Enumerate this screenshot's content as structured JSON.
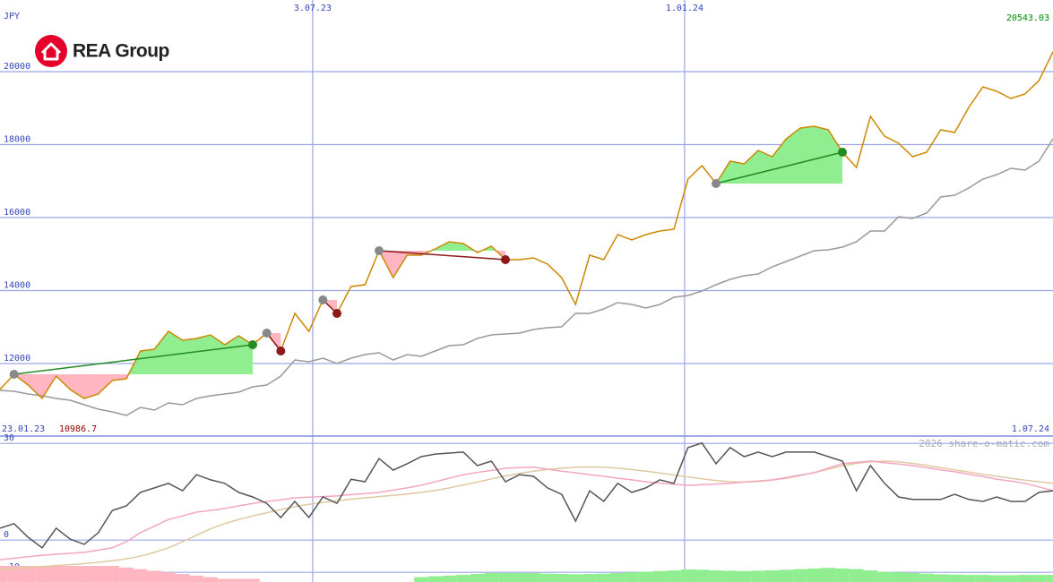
{
  "chart_data": [
    {
      "type": "line",
      "title": "REA Group",
      "unit": "JPY",
      "xlim": [
        0,
        75
      ],
      "xticks": [
        {
          "value": 0,
          "label": "23.01.23"
        },
        {
          "value": 22.27,
          "label": "3.07.23"
        },
        {
          "value": 48.76,
          "label": "1.01.24"
        },
        {
          "value": 75,
          "label": "1.07.24"
        }
      ],
      "ylim": [
        10012,
        21963
      ],
      "yticks": [
        12000,
        14000,
        16000,
        18000,
        20000
      ],
      "grid": true,
      "low": 10986.7,
      "low_color": "#8b0000",
      "last_color": "#008800",
      "series": [
        {
          "color": "#cc8800",
          "values": [
            11288,
            11705,
            11411,
            11043,
            11656,
            11288,
            11043,
            11166,
            11534,
            11583,
            12343,
            12392,
            12883,
            12638,
            12687,
            12785,
            12515,
            12760,
            12515,
            12834,
            12343,
            13374,
            12883,
            13742,
            13374,
            14110,
            14159,
            15092,
            14356,
            14969,
            14969,
            15141,
            15337,
            15288,
            15043,
            15214,
            14847,
            14847,
            14896,
            14724,
            14356,
            13620,
            14969,
            14847,
            15534,
            15386,
            15534,
            15632,
            15681,
            17055,
            17423,
            16932,
            17546,
            17472,
            17840,
            17669,
            18159,
            18454,
            18503,
            18405,
            17791,
            17374,
            18773,
            18233,
            18037,
            17669,
            17791,
            18405,
            18331,
            19018,
            19583,
            19460,
            19264,
            19386,
            19755,
            20543.03
          ]
        },
        {
          "color": "#999999",
          "values": [
            11264,
            11240,
            11166,
            11117,
            11043,
            10994,
            10871,
            10748,
            10675,
            10577,
            10798,
            10724,
            10920,
            10871,
            11043,
            11117,
            11166,
            11215,
            11362,
            11411,
            11656,
            12098,
            12049,
            12147,
            12000,
            12147,
            12245,
            12294,
            12098,
            12245,
            12196,
            12343,
            12491,
            12515,
            12687,
            12785,
            12810,
            12834,
            12932,
            12981,
            13006,
            13374,
            13374,
            13497,
            13669,
            13620,
            13521,
            13620,
            13816,
            13865,
            13988,
            14159,
            14307,
            14405,
            14454,
            14650,
            14797,
            14945,
            15092,
            15116,
            15190,
            15337,
            15632,
            15632,
            16025,
            15976,
            16123,
            16565,
            16614,
            16810,
            17055,
            17178,
            17350,
            17301,
            17546,
            18159
          ]
        }
      ],
      "trades": [
        {
          "start": 1,
          "end": 18,
          "color": "#228b22"
        },
        {
          "start": 19,
          "end": 20,
          "color": "#8b1a1a"
        },
        {
          "start": 23,
          "end": 24,
          "color": "#8b1a1a"
        },
        {
          "start": 27,
          "end": 36,
          "color": "#8b1a1a"
        },
        {
          "start": 51,
          "end": 60,
          "color": "#228b22"
        }
      ]
    },
    {
      "type": "line",
      "credit": "2026 share-o-matic.com",
      "xlim": [
        0,
        75
      ],
      "ylim": [
        -13,
        32
      ],
      "yticks": [
        30,
        0,
        -10
      ],
      "grid": true,
      "series": [
        {
          "color": "#555555",
          "values": [
            3.7,
            5.1,
            0.9,
            -2.4,
            3.7,
            0.3,
            -1.3,
            2.3,
            9.2,
            10.6,
            14.8,
            16.2,
            17.6,
            15.3,
            20.3,
            18.7,
            17.6,
            14.8,
            13.4,
            11.4,
            7,
            12,
            7,
            13.4,
            11.4,
            18.9,
            18.1,
            25.3,
            21.7,
            23.7,
            25.9,
            26.7,
            27,
            27.3,
            23.1,
            24.5,
            18.1,
            20.3,
            19.8,
            16.2,
            14.2,
            5.9,
            15.3,
            12,
            17.6,
            14.8,
            16.2,
            18.7,
            17.6,
            28.7,
            30.1,
            23.7,
            28.7,
            25.9,
            27.3,
            25.9,
            27.3,
            27.3,
            27.3,
            25.9,
            24.5,
            15.3,
            23.1,
            17.6,
            13.4,
            12.6,
            12.6,
            12.6,
            14.2,
            12.6,
            12,
            13.4,
            12,
            12,
            14.8,
            15.3
          ]
        },
        {
          "color": "#f4a6c0",
          "values": [
            -6.1,
            -5.6,
            -5.2,
            -4.7,
            -4.4,
            -4.1,
            -3.8,
            -3.1,
            -2.4,
            -0.5,
            2.3,
            4.3,
            6.4,
            7.5,
            8.7,
            9.2,
            9.8,
            10.6,
            11.4,
            12,
            12.5,
            13.1,
            13.3,
            13.5,
            13.7,
            14.1,
            14.4,
            14.8,
            15.5,
            16.2,
            17,
            18.1,
            19.2,
            20.3,
            21,
            21.6,
            22.3,
            22.5,
            22.6,
            22,
            21.4,
            20.9,
            20.3,
            19.8,
            19.2,
            18.7,
            18.1,
            17.7,
            17.3,
            17,
            17.2,
            17.4,
            17.6,
            18,
            18.3,
            18.7,
            19.4,
            20.2,
            20.9,
            22.3,
            23.7,
            24.1,
            24.5,
            24,
            23.6,
            23.1,
            22.5,
            21.8,
            21.2,
            20.4,
            19.7,
            18.9,
            18.3,
            17.6,
            16.5,
            15.3
          ]
        },
        {
          "color": "#e0c8a0",
          "values": [
            -9.1,
            -8.8,
            -8.5,
            -8.2,
            -7.9,
            -7.6,
            -7.3,
            -6.9,
            -6.4,
            -5.8,
            -5,
            -3.8,
            -2.4,
            -0.5,
            1.5,
            3.5,
            5.1,
            6.4,
            7.5,
            8.5,
            9.5,
            10.4,
            11.1,
            11.7,
            12.2,
            12.7,
            13.1,
            13.5,
            13.9,
            14.3,
            14.8,
            15.4,
            16.2,
            17.1,
            18,
            19,
            19.9,
            20.7,
            21.4,
            21.9,
            22.3,
            22.6,
            22.7,
            22.6,
            22.3,
            21.9,
            21.4,
            20.8,
            20.2,
            19.6,
            19,
            18.5,
            18.1,
            18,
            18.2,
            18.6,
            19.2,
            20,
            21,
            22,
            23,
            23.8,
            24.3,
            24.5,
            24.3,
            23.8,
            23.2,
            22.5,
            21.8,
            21.1,
            20.4,
            19.8,
            19.2,
            18.6,
            18.1,
            17.6
          ]
        }
      ],
      "bars": {
        "positive_color": "#90ee90",
        "negative_color": "#ffb6c1",
        "values": [
          -5,
          -5,
          -5,
          -5,
          -5,
          -5,
          -5,
          -5,
          -5,
          -4.5,
          -4,
          -3.5,
          -3,
          -2.5,
          -2,
          -1.5,
          -1,
          -1,
          -1,
          null,
          null,
          null,
          null,
          null,
          null,
          null,
          null,
          null,
          null,
          null,
          1.5,
          1.8,
          2,
          2.2,
          2.5,
          2.8,
          2.8,
          2.8,
          2.8,
          2.6,
          2.5,
          2.4,
          2.5,
          2.6,
          2.8,
          3,
          3.2,
          3.4,
          3.6,
          3.9,
          3.8,
          3.6,
          3.5,
          3.4,
          3.5,
          3.6,
          3.8,
          4,
          4.2,
          4.4,
          4.2,
          4,
          3.6,
          3.2,
          3,
          2.8,
          2.6,
          2.4,
          2.3,
          2.2,
          2.2,
          2.1,
          2.1,
          2.2,
          2.2,
          2.2
        ]
      }
    }
  ]
}
